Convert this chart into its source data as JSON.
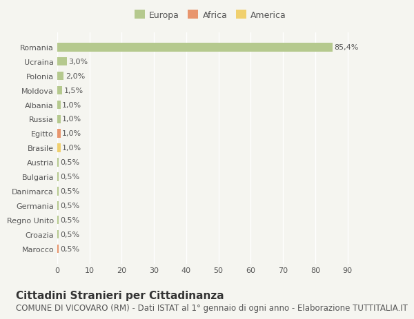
{
  "countries": [
    "Romania",
    "Ucraina",
    "Polonia",
    "Moldova",
    "Albania",
    "Russia",
    "Egitto",
    "Brasile",
    "Austria",
    "Bulgaria",
    "Danimarca",
    "Germania",
    "Regno Unito",
    "Croazia",
    "Marocco"
  ],
  "values": [
    85.4,
    3.0,
    2.0,
    1.5,
    1.0,
    1.0,
    1.0,
    1.0,
    0.5,
    0.5,
    0.5,
    0.5,
    0.5,
    0.5,
    0.5
  ],
  "labels": [
    "85,4%",
    "3,0%",
    "2,0%",
    "1,5%",
    "1,0%",
    "1,0%",
    "1,0%",
    "1,0%",
    "0,5%",
    "0,5%",
    "0,5%",
    "0,5%",
    "0,5%",
    "0,5%",
    "0,5%"
  ],
  "continent": [
    "Europa",
    "Europa",
    "Europa",
    "Europa",
    "Europa",
    "Europa",
    "Africa",
    "America",
    "Europa",
    "Europa",
    "Europa",
    "Europa",
    "Europa",
    "Europa",
    "Africa"
  ],
  "colors": {
    "Europa": "#b5c98e",
    "Africa": "#e8956d",
    "America": "#f0d06e"
  },
  "legend_colors": {
    "Europa": "#b5c98e",
    "Africa": "#e8956d",
    "America": "#f0d06e"
  },
  "background_color": "#f5f5f0",
  "grid_color": "#ffffff",
  "bar_edge_color": "none",
  "xlim": [
    0,
    95
  ],
  "xticks": [
    0,
    10,
    20,
    30,
    40,
    50,
    60,
    70,
    80,
    90
  ],
  "title": "Cittadini Stranieri per Cittadinanza",
  "subtitle": "COMUNE DI VICOVARO (RM) - Dati ISTAT al 1° gennaio di ogni anno - Elaborazione TUTTITALIA.IT",
  "title_fontsize": 11,
  "subtitle_fontsize": 8.5,
  "label_fontsize": 8,
  "tick_fontsize": 8,
  "legend_fontsize": 9
}
